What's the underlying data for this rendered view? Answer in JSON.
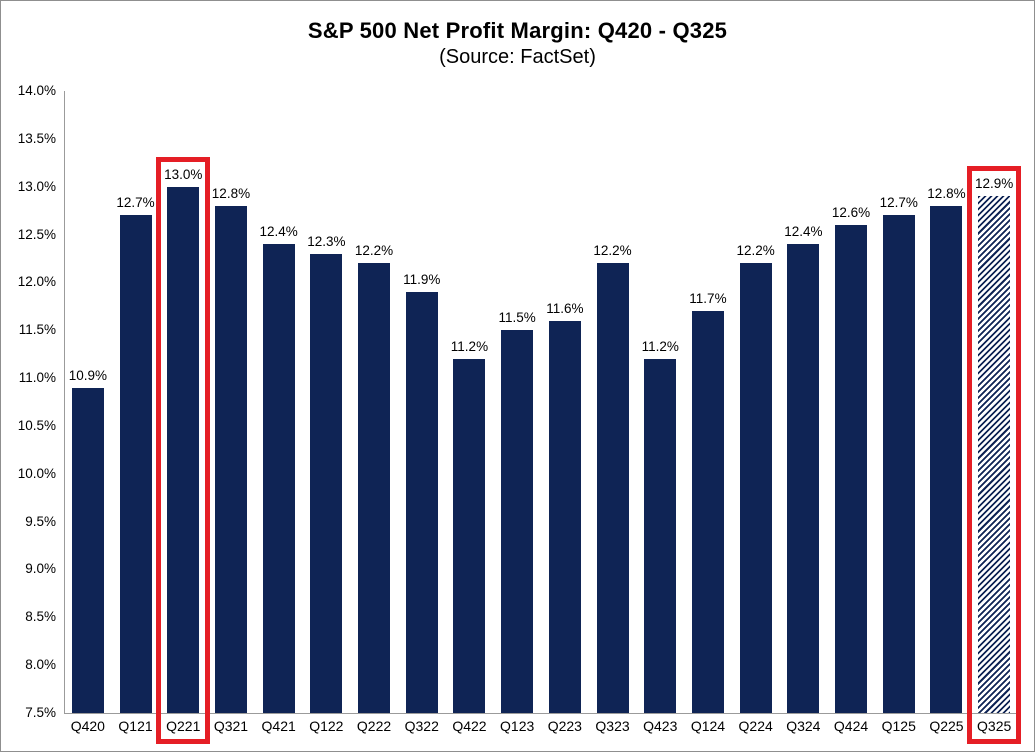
{
  "window": {
    "background": "#ffffff",
    "border_color": "#8f8f8f"
  },
  "chart_data": {
    "type": "bar",
    "title": "S&P 500 Net Profit Margin: Q420 - Q325",
    "subtitle": "(Source: FactSet)",
    "categories": [
      "Q420",
      "Q121",
      "Q221",
      "Q321",
      "Q421",
      "Q122",
      "Q222",
      "Q322",
      "Q422",
      "Q123",
      "Q223",
      "Q323",
      "Q423",
      "Q124",
      "Q224",
      "Q324",
      "Q424",
      "Q125",
      "Q225",
      "Q325"
    ],
    "values": [
      10.9,
      12.7,
      13.0,
      12.8,
      12.4,
      12.3,
      12.2,
      11.9,
      11.2,
      11.5,
      11.6,
      12.2,
      11.2,
      11.7,
      12.2,
      12.4,
      12.6,
      12.7,
      12.8,
      12.9
    ],
    "data_labels": [
      "10.9%",
      "12.7%",
      "13.0%",
      "12.8%",
      "12.4%",
      "12.3%",
      "12.2%",
      "11.9%",
      "11.2%",
      "11.5%",
      "11.6%",
      "12.2%",
      "11.2%",
      "11.7%",
      "12.2%",
      "12.4%",
      "12.6%",
      "12.7%",
      "12.8%",
      "12.9%"
    ],
    "highlighted_categories": [
      "Q221",
      "Q325"
    ],
    "hatched_categories": [
      "Q325"
    ],
    "xlabel": "",
    "ylabel": "",
    "ylim": [
      7.5,
      14.0
    ],
    "ytick_values": [
      7.5,
      8.0,
      8.5,
      9.0,
      9.5,
      10.0,
      10.5,
      11.0,
      11.5,
      12.0,
      12.5,
      13.0,
      13.5,
      14.0
    ],
    "ytick_labels": [
      "7.5%",
      "8.0%",
      "8.5%",
      "9.0%",
      "9.5%",
      "10.0%",
      "10.5%",
      "11.0%",
      "11.5%",
      "12.0%",
      "12.5%",
      "13.0%",
      "13.5%",
      "14.0%"
    ],
    "grid": false,
    "legend_position": "none",
    "colors": {
      "bar": "#0f2455",
      "highlight_box": "#e51e25",
      "axis": "#9b9b9b",
      "text": "#000000",
      "background": "#ffffff"
    }
  }
}
